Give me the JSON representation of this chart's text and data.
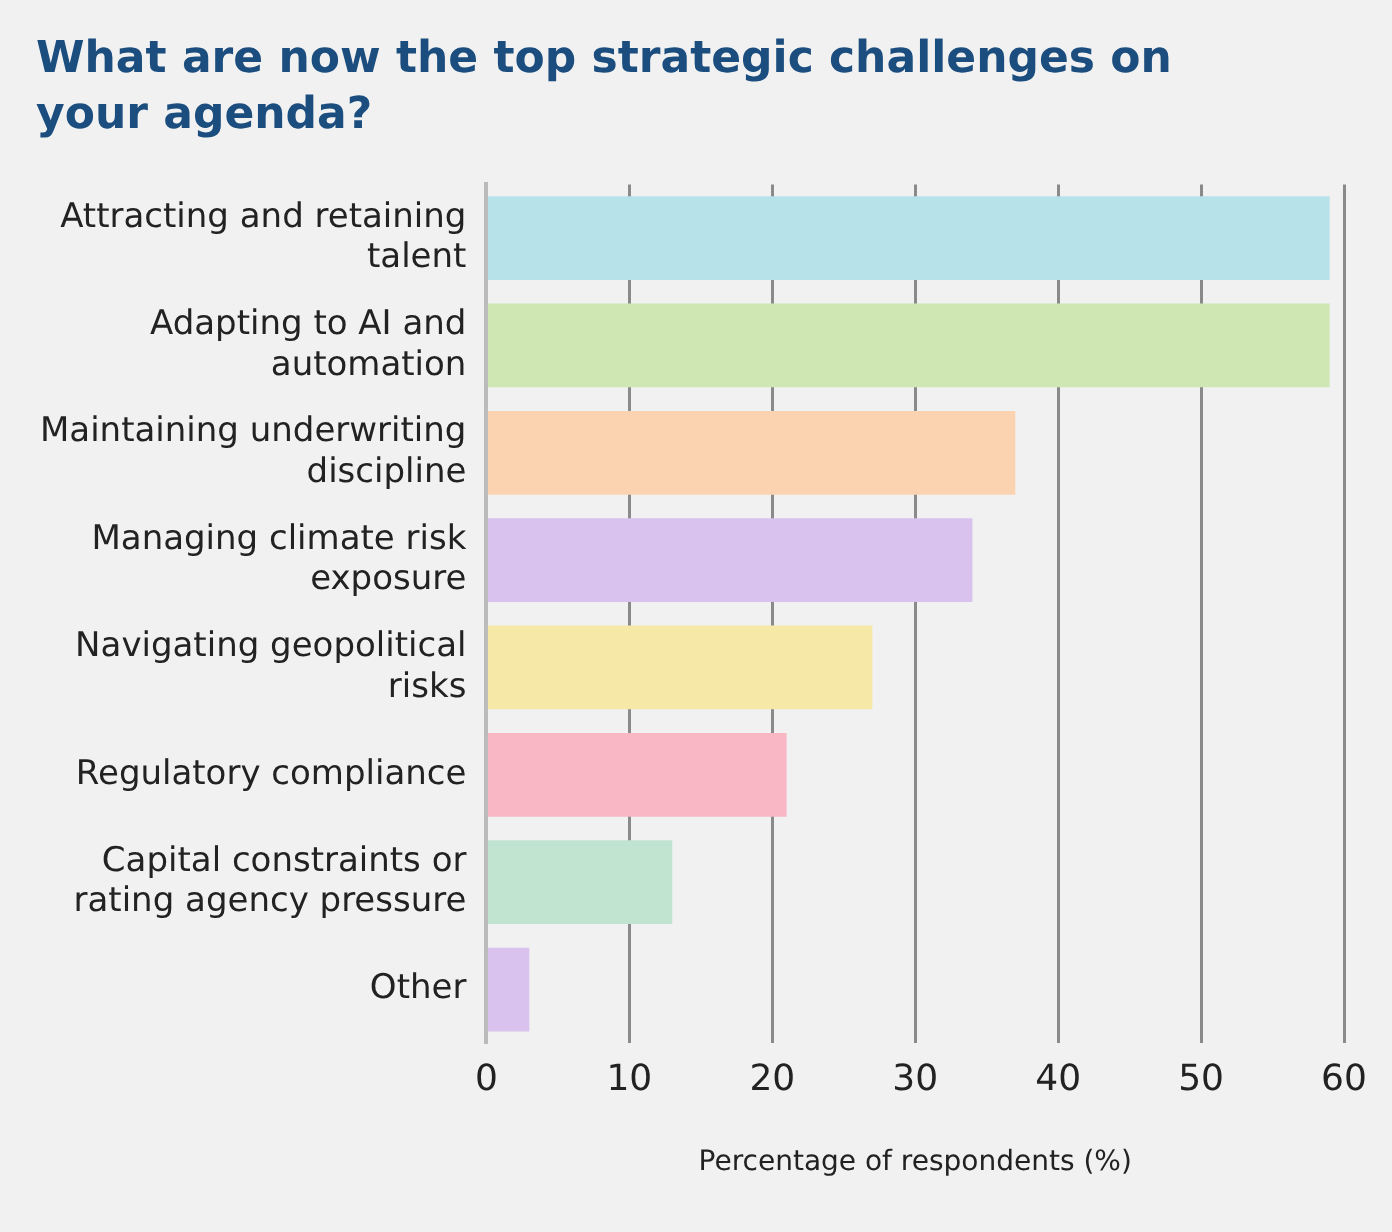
{
  "chart_data": {
    "type": "bar",
    "orientation": "horizontal",
    "title": "What are now the top strategic challenges on your agenda?",
    "xlabel": "Percentage of respondents (%)",
    "categories": [
      "Attracting and retaining talent",
      "Adapting to AI and automation",
      "Maintaining underwriting discipline",
      "Managing climate risk exposure",
      "Navigating geopolitical risks",
      "Regulatory compliance",
      "Capital constraints or rating agency pressure",
      "Other"
    ],
    "values": [
      59,
      59,
      37,
      34,
      27,
      21,
      13,
      3
    ],
    "colors": [
      "#b8e2ea",
      "#cfe8b3",
      "#fbd3b0",
      "#d9c2ee",
      "#f6e8a6",
      "#f9b6c4",
      "#c1e4d1",
      "#d9c2ee"
    ],
    "xlim": [
      0,
      60
    ],
    "xticks": [
      0,
      10,
      20,
      30,
      40,
      50,
      60
    ],
    "grid": "x",
    "legend": false
  }
}
